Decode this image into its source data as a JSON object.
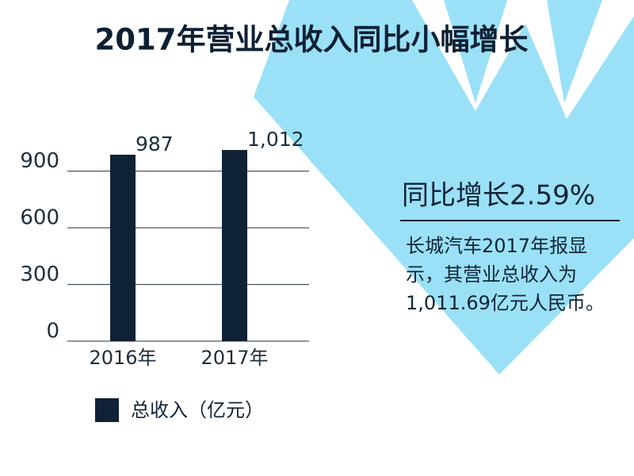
{
  "chart_data": {
    "type": "bar",
    "title": "2017年营业总收入同比小幅增长",
    "categories": [
      "2016年",
      "2017年"
    ],
    "series": [
      {
        "name": "总收入（亿元）",
        "color": "#0f2236",
        "values": [
          987,
          1012
        ],
        "value_labels": [
          "987",
          "1,012"
        ]
      }
    ],
    "ylim": [
      0,
      1050
    ],
    "yticks": [
      0,
      300,
      600,
      900
    ],
    "grid": true,
    "legend": "bottom",
    "annotations": [
      "同比增长2.59%",
      "长城汽车2017年报显示，其营业总收入为1,011.69亿元人民币。"
    ]
  }
}
